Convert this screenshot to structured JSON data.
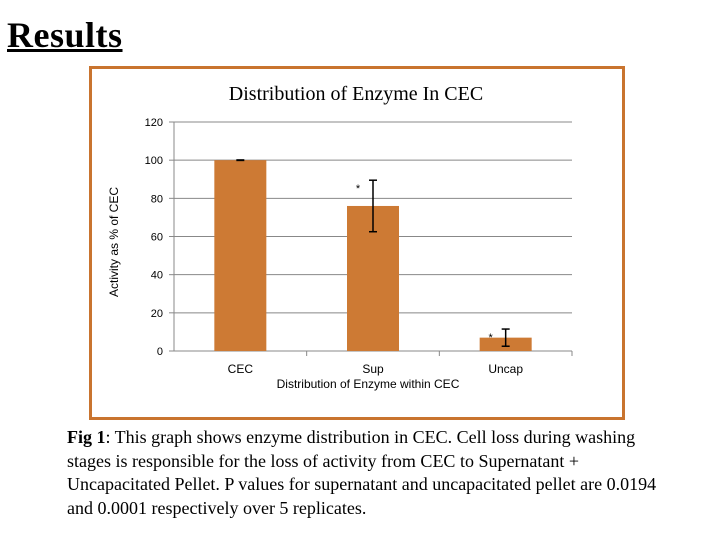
{
  "slide": {
    "title": "Results"
  },
  "caption": {
    "label": "Fig 1",
    "text": ": This graph shows enzyme distribution in CEC.  Cell loss during washing stages is responsible for the loss of activity from CEC to Supernatant + Uncapacitated Pellet. P values for supernatant and uncapacitated pellet are 0.0194 and 0.0001 respectively over 5 replicates."
  },
  "chart_data": {
    "type": "bar",
    "title": "Distribution of Enzyme In CEC",
    "xlabel": "Distribution of Enzyme within CEC",
    "ylabel": "Activity as % of CEC",
    "categories": [
      "CEC",
      "Sup",
      "Uncap"
    ],
    "values": [
      100,
      76,
      7
    ],
    "error_bars": [
      0,
      13.5,
      4.5
    ],
    "significance_markers": [
      "",
      "*",
      "*"
    ],
    "ylim": [
      0,
      120
    ],
    "yticks": [
      0,
      20,
      40,
      60,
      80,
      100,
      120
    ],
    "grid": "horizontal",
    "legend": "none",
    "colors": {
      "bar": "#cd7a34",
      "frame": "#c9742f",
      "gridline": "#888888"
    }
  }
}
